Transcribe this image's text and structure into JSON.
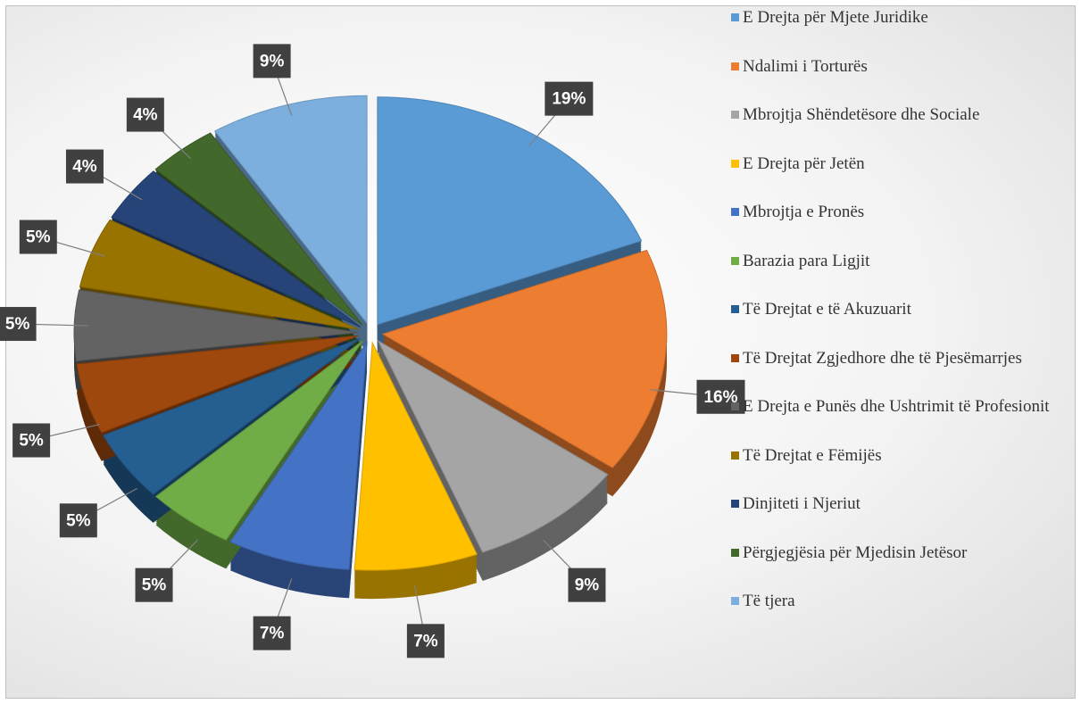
{
  "chart_data": {
    "type": "pie",
    "categories": [
      "E Drejta për Mjete Juridike",
      "Ndalimi i Torturës",
      "Mbrojtja Shëndetësore dhe Sociale",
      "E Drejta për Jetën",
      "Mbrojtja e Pronës",
      "Barazia para Ligjit",
      "Të Drejtat e të Akuzuarit",
      "Të Drejtat Zgjedhore dhe të Pjesëmarrjes",
      "E Drejta e Punës dhe Ushtrimit të Profesionit",
      "Të Drejtat e Fëmijës",
      "Dinjiteti i Njeriut",
      "Përgjegjësia për Mjedisin Jetësor",
      "Të tjera"
    ],
    "values": [
      19,
      16,
      9,
      7,
      7,
      5,
      5,
      5,
      5,
      5,
      4,
      4,
      9
    ],
    "value_labels": [
      "19%",
      "16%",
      "9%",
      "7%",
      "7%",
      "5%",
      "5%",
      "5%",
      "5%",
      "5%",
      "4%",
      "4%",
      "9%"
    ],
    "colors": [
      "#5b9bd5",
      "#ed7d31",
      "#a5a5a5",
      "#ffc000",
      "#4472c4",
      "#70ad47",
      "#255e91",
      "#9e480e",
      "#636363",
      "#997300",
      "#264478",
      "#43682b",
      "#7cafdd"
    ],
    "legend": "right"
  }
}
